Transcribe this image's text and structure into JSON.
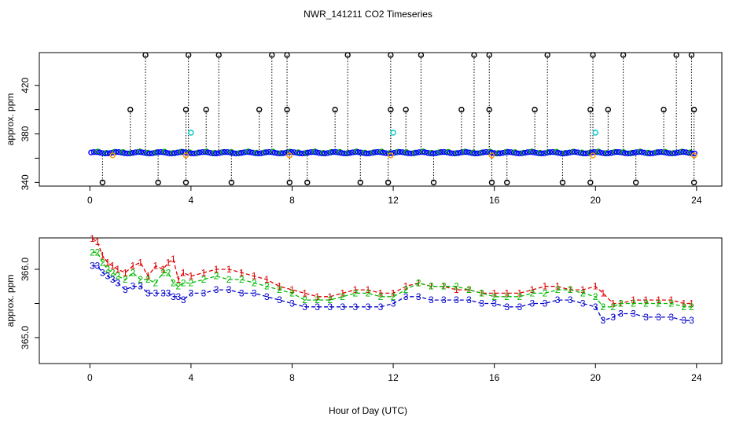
{
  "chart_data": {
    "title": "NWR_141211  CO2 Timeseries",
    "xlabel": "Hour of Day (UTC)",
    "panels": [
      {
        "id": "top",
        "type": "scatter",
        "ylabel": "approx. ppm",
        "xlim": [
          -2.0,
          25.0
        ],
        "ylim": [
          337,
          447
        ],
        "xticks": [
          0,
          4,
          8,
          12,
          16,
          20,
          24
        ],
        "yticks": [
          340,
          360,
          380,
          400,
          420
        ],
        "ytick_labels": [
          "340",
          "",
          "380",
          "",
          "420"
        ],
        "baseline": 364.5,
        "colors": {
          "baseline": "#0000ff",
          "baseline_alt": "#00aa00",
          "outlier": "#000000",
          "cyan": "#00cccc",
          "orange": "#ff9900"
        },
        "outliers_high": [
          2.2,
          3.9,
          5.1,
          7.2,
          7.8,
          10.2,
          11.9,
          13.1,
          15.2,
          15.8,
          18.1,
          19.9,
          21.1,
          23.2,
          23.8
        ],
        "outliers_400": [
          1.6,
          3.8,
          4.6,
          6.7,
          7.8,
          9.7,
          11.9,
          12.5,
          14.7,
          15.8,
          17.6,
          19.8,
          20.5,
          22.7,
          23.9
        ],
        "outliers_low": [
          0.5,
          2.7,
          3.8,
          5.6,
          7.9,
          8.6,
          10.7,
          11.8,
          13.6,
          15.9,
          16.5,
          18.7,
          19.8,
          21.6,
          23.9
        ],
        "cyan_points": [
          {
            "x": 4.0,
            "y": 381
          },
          {
            "x": 12.0,
            "y": 381
          },
          {
            "x": 20.0,
            "y": 381
          }
        ]
      },
      {
        "id": "bottom",
        "type": "line",
        "ylabel": "approx. ppm",
        "xlim": [
          -2.0,
          25.0
        ],
        "ylim": [
          364.62,
          366.46
        ],
        "xticks": [
          0,
          4,
          8,
          12,
          16,
          20,
          24
        ],
        "yticks": [
          365.0,
          365.5,
          366.0
        ],
        "ytick_labels": [
          "365.0",
          "",
          "366.0"
        ],
        "series": [
          {
            "name": "1",
            "color": "#dd0000",
            "x": [
              0.1,
              0.3,
              0.5,
              0.7,
              0.9,
              1.1,
              1.4,
              1.7,
              2.0,
              2.3,
              2.6,
              2.9,
              3.1,
              3.3,
              3.5,
              3.7,
              4.0,
              4.5,
              5.0,
              5.5,
              6.0,
              6.5,
              7.0,
              7.5,
              8.0,
              8.5,
              9.0,
              9.5,
              10.0,
              10.5,
              11.0,
              11.5,
              12.0,
              12.5,
              13.0,
              13.5,
              14.0,
              14.5,
              15.0,
              15.5,
              16.0,
              16.5,
              17.0,
              17.5,
              18.0,
              18.5,
              19.0,
              19.5,
              20.0,
              20.3,
              20.7,
              21.0,
              21.5,
              22.0,
              22.5,
              23.0,
              23.5,
              23.8
            ],
            "values": [
              366.45,
              366.4,
              366.2,
              366.1,
              366.05,
              366.0,
              365.95,
              366.05,
              366.1,
              365.9,
              366.05,
              366.0,
              366.1,
              366.15,
              365.85,
              365.95,
              365.9,
              365.95,
              366.0,
              366.0,
              365.95,
              365.9,
              365.85,
              365.75,
              365.7,
              365.65,
              365.6,
              365.6,
              365.65,
              365.7,
              365.7,
              365.65,
              365.65,
              365.75,
              365.8,
              365.75,
              365.75,
              365.7,
              365.7,
              365.65,
              365.65,
              365.65,
              365.65,
              365.7,
              365.75,
              365.75,
              365.7,
              365.7,
              365.75,
              365.65,
              365.5,
              365.5,
              365.55,
              365.55,
              365.55,
              365.55,
              365.5,
              365.5
            ]
          },
          {
            "name": "2",
            "color": "#00bb00",
            "x": [
              0.1,
              0.3,
              0.5,
              0.7,
              0.9,
              1.1,
              1.4,
              1.7,
              2.0,
              2.3,
              2.6,
              2.9,
              3.1,
              3.3,
              3.5,
              3.7,
              4.0,
              4.5,
              5.0,
              5.5,
              6.0,
              6.5,
              7.0,
              7.5,
              8.0,
              8.5,
              9.0,
              9.5,
              10.0,
              10.5,
              11.0,
              11.5,
              12.0,
              12.5,
              13.0,
              13.5,
              14.0,
              14.5,
              15.0,
              15.5,
              16.0,
              16.5,
              17.0,
              17.5,
              18.0,
              18.5,
              19.0,
              19.5,
              20.0,
              20.3,
              20.7,
              21.0,
              21.5,
              22.0,
              22.5,
              23.0,
              23.5,
              23.8
            ],
            "values": [
              366.25,
              366.25,
              366.1,
              366.0,
              365.95,
              365.9,
              365.85,
              365.95,
              365.85,
              365.85,
              365.8,
              365.95,
              365.95,
              365.8,
              365.75,
              365.8,
              365.8,
              365.85,
              365.9,
              365.85,
              365.85,
              365.8,
              365.75,
              365.7,
              365.65,
              365.55,
              365.55,
              365.55,
              365.6,
              365.65,
              365.65,
              365.6,
              365.6,
              365.7,
              365.8,
              365.75,
              365.75,
              365.75,
              365.7,
              365.65,
              365.6,
              365.6,
              365.6,
              365.65,
              365.65,
              365.7,
              365.7,
              365.65,
              365.6,
              365.45,
              365.45,
              365.5,
              365.5,
              365.5,
              365.5,
              365.5,
              365.45,
              365.45
            ]
          },
          {
            "name": "3",
            "color": "#0000cc",
            "x": [
              0.1,
              0.3,
              0.5,
              0.7,
              0.9,
              1.1,
              1.4,
              1.7,
              2.0,
              2.3,
              2.6,
              2.9,
              3.1,
              3.3,
              3.5,
              3.7,
              4.0,
              4.5,
              5.0,
              5.5,
              6.0,
              6.5,
              7.0,
              7.5,
              8.0,
              8.5,
              9.0,
              9.5,
              10.0,
              10.5,
              11.0,
              11.5,
              12.0,
              12.5,
              13.0,
              13.5,
              14.0,
              14.5,
              15.0,
              15.5,
              16.0,
              16.5,
              17.0,
              17.5,
              18.0,
              18.5,
              19.0,
              19.5,
              20.0,
              20.3,
              20.7,
              21.0,
              21.5,
              22.0,
              22.5,
              23.0,
              23.5,
              23.8
            ],
            "values": [
              366.05,
              366.05,
              365.95,
              365.9,
              365.85,
              365.8,
              365.7,
              365.75,
              365.75,
              365.65,
              365.65,
              365.65,
              365.65,
              365.6,
              365.6,
              365.55,
              365.65,
              365.65,
              365.7,
              365.7,
              365.65,
              365.65,
              365.6,
              365.55,
              365.5,
              365.45,
              365.45,
              365.45,
              365.45,
              365.45,
              365.45,
              365.45,
              365.5,
              365.6,
              365.6,
              365.55,
              365.55,
              365.55,
              365.55,
              365.5,
              365.5,
              365.45,
              365.45,
              365.5,
              365.5,
              365.55,
              365.55,
              365.5,
              365.45,
              365.25,
              365.3,
              365.35,
              365.35,
              365.3,
              365.3,
              365.3,
              365.25,
              365.25
            ]
          }
        ]
      }
    ]
  }
}
